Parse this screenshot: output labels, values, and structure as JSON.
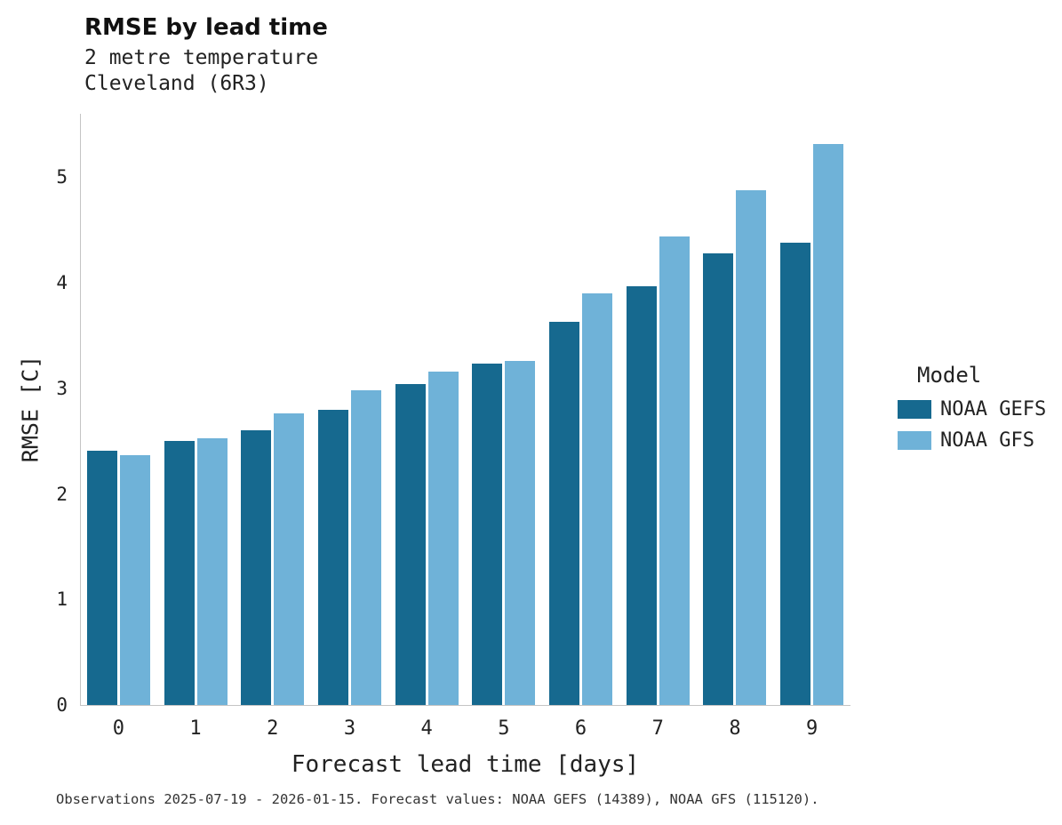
{
  "header": {
    "title": "RMSE by lead time",
    "subtitle_line1": "2 metre temperature",
    "subtitle_line2": "Cleveland (6R3)"
  },
  "chart_data": {
    "type": "bar",
    "title": "RMSE by lead time",
    "subtitle": "2 metre temperature — Cleveland (6R3)",
    "xlabel": "Forecast lead time [days]",
    "ylabel": "RMSE [C]",
    "categories": [
      "0",
      "1",
      "2",
      "3",
      "4",
      "5",
      "6",
      "7",
      "8",
      "9"
    ],
    "series": [
      {
        "name": "NOAA GEFS",
        "color": "#16698f",
        "values": [
          2.41,
          2.5,
          2.6,
          2.8,
          3.04,
          3.23,
          3.63,
          3.97,
          4.28,
          4.38
        ]
      },
      {
        "name": "NOAA GFS",
        "color": "#6fb2d8",
        "values": [
          2.37,
          2.53,
          2.76,
          2.98,
          3.16,
          3.26,
          3.9,
          4.44,
          4.88,
          5.31
        ]
      }
    ],
    "ylim": [
      0,
      5.6
    ],
    "yticks": [
      0,
      1,
      2,
      3,
      4,
      5
    ],
    "grid": false,
    "legend_title": "Model",
    "legend_position": "right"
  },
  "footer": {
    "caption": "Observations 2025-07-19 - 2026-01-15. Forecast values: NOAA GEFS (14389), NOAA GFS (115120)."
  }
}
